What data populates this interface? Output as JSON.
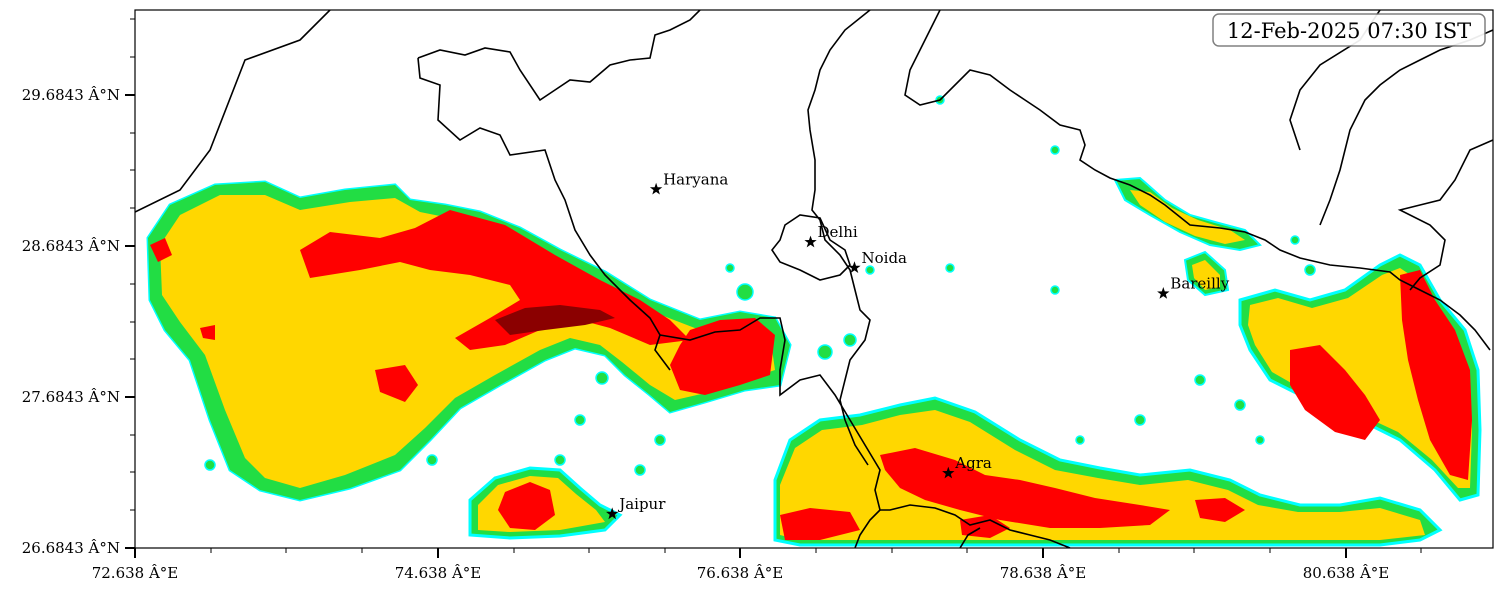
{
  "map": {
    "timestamp": "12-Feb-2025 07:30 IST",
    "x_ticks": [
      "72.638 Â°E",
      "74.638 Â°E",
      "76.638 Â°E",
      "78.638 Â°E",
      "80.638 Â°E"
    ],
    "y_ticks": [
      "29.6843 Â°N",
      "28.6843 Â°N",
      "27.6843 Â°N",
      "26.6843 Â°N"
    ],
    "cities": [
      {
        "name": "Haryana",
        "lon": 76.08,
        "lat": 29.06
      },
      {
        "name": "Delhi",
        "lon": 77.1,
        "lat": 28.71
      },
      {
        "name": "Noida",
        "lon": 77.39,
        "lat": 28.54
      },
      {
        "name": "Bareilly",
        "lon": 79.43,
        "lat": 28.37
      },
      {
        "name": "Agra",
        "lon": 78.01,
        "lat": 27.18
      },
      {
        "name": "Jaipur",
        "lon": 75.79,
        "lat": 26.91
      }
    ],
    "colors": {
      "cyan": "#00ffff",
      "green": "#22dd44",
      "yellow": "#ffd700",
      "red": "#ff0000",
      "darkred": "#8b0000",
      "border": "#000000"
    }
  }
}
